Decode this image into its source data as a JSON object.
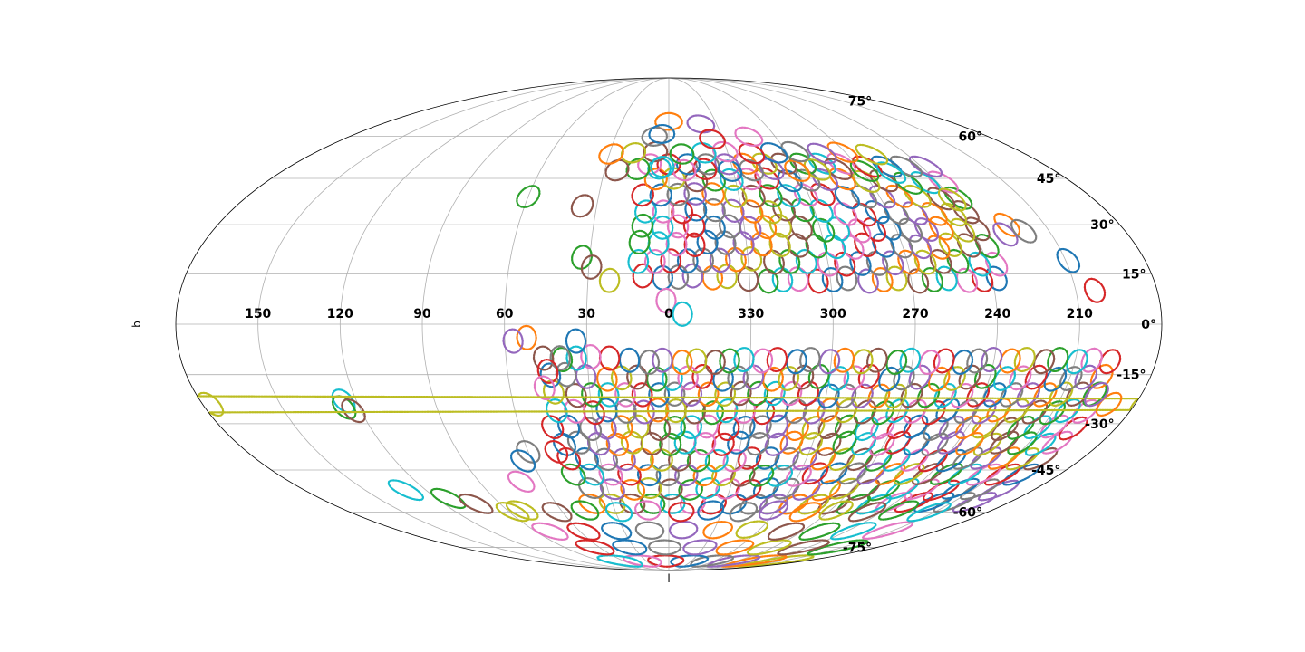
{
  "chart_data": {
    "type": "scatter",
    "projection": "mollweide",
    "title": "",
    "xlabel": "l",
    "ylabel": "b",
    "xlim": [
      -180,
      180
    ],
    "ylim": [
      -90,
      90
    ],
    "grid": true,
    "legend": "none",
    "x_ticks": [
      "150",
      "120",
      "90",
      "60",
      "30",
      "0",
      "330",
      "300",
      "270",
      "240",
      "210"
    ],
    "x_tick_values": [
      150,
      120,
      90,
      60,
      30,
      0,
      -30,
      -60,
      -90,
      -120,
      -150
    ],
    "y_ticks": [
      "75°",
      "60°",
      "45°",
      "30°",
      "15°",
      "0°",
      "-15°",
      "-30°",
      "-45°",
      "-60°",
      "-75°"
    ],
    "y_tick_values": [
      75,
      60,
      45,
      30,
      15,
      0,
      -15,
      -30,
      -45,
      -60,
      -75
    ],
    "colors": [
      "#1f77b4",
      "#ff7f0e",
      "#2ca02c",
      "#d62728",
      "#9467bd",
      "#8c564b",
      "#e377c2",
      "#7f7f7f",
      "#bcbd22",
      "#17becf"
    ],
    "footprint_radius_deg": 3.5,
    "description_of_marks": "Many small circular field footprints (dotted outlines) in galactic coordinates l, b",
    "fields": [
      {
        "l": 0,
        "b": 66
      },
      {
        "l": -20,
        "b": 65
      },
      {
        "l": 8,
        "b": 60
      },
      {
        "l": 4,
        "b": 61
      },
      {
        "l": -24,
        "b": 59
      },
      {
        "l": -45,
        "b": 60
      },
      {
        "l": 3,
        "b": 49
      },
      {
        "l": 60,
        "b": 39
      },
      {
        "l": 36,
        "b": 36
      },
      {
        "l": -120,
        "b": 38
      },
      {
        "l": -135,
        "b": 30
      },
      {
        "l": -132,
        "b": 27
      },
      {
        "l": -140,
        "b": 28
      },
      {
        "l": -151,
        "b": 19
      },
      {
        "l": -157,
        "b": 10
      },
      {
        "l": 1,
        "b": 7
      },
      {
        "l": -5,
        "b": 3
      },
      {
        "l": 33,
        "b": 20
      },
      {
        "l": 29,
        "b": 17
      },
      {
        "l": 22,
        "b": 13
      },
      {
        "l": 52,
        "b": -4
      },
      {
        "l": 57,
        "b": -5
      },
      {
        "l": 40,
        "b": -10
      },
      {
        "l": 34,
        "b": -5
      },
      {
        "l": 45,
        "b": -14
      },
      {
        "l": 47,
        "b": -19
      },
      {
        "l": 125,
        "b": -23
      },
      {
        "l": 126,
        "b": -25
      },
      {
        "l": 123,
        "b": -26
      },
      {
        "l": 177,
        "b": -24
      },
      {
        "l": -170,
        "b": -24
      },
      {
        "l": -163,
        "b": -21
      },
      {
        "l": 60,
        "b": -39
      },
      {
        "l": 64,
        "b": -42
      },
      {
        "l": 48,
        "b": -39
      },
      {
        "l": 70,
        "b": -49
      },
      {
        "l": 130,
        "b": -52
      },
      {
        "l": 114,
        "b": -55
      },
      {
        "l": 103,
        "b": -57
      },
      {
        "l": 88,
        "b": -60
      }
    ],
    "survey_regions": [
      {
        "l_range": [
          -121,
          13
        ],
        "b_range": [
          14,
          50
        ],
        "spacing_deg": 6
      },
      {
        "l_range": [
          -101,
          33
        ],
        "b_range": [
          48,
          58
        ],
        "spacing_deg": 7
      },
      {
        "l_range": [
          -161,
          48
        ],
        "b_range": [
          -56,
          -6
        ],
        "spacing_deg": 6
      },
      {
        "l_range": [
          -145,
          85
        ],
        "b_range": [
          -82,
          -56
        ],
        "spacing_deg": 9
      }
    ]
  }
}
